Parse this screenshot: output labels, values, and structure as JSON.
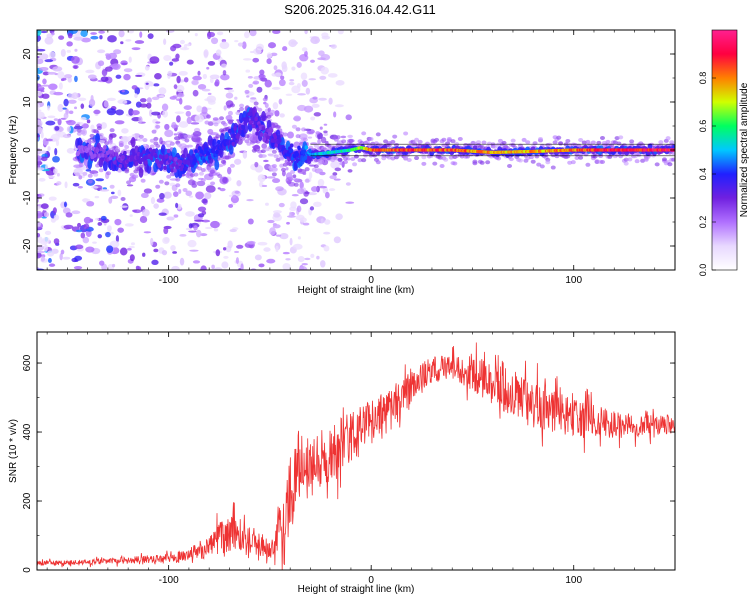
{
  "title": "S206.2025.316.04.42.G11",
  "chart_data": [
    {
      "type": "heatmap",
      "xlabel": "Height of straight line (km)",
      "ylabel": "Frequency (Hz)",
      "xlim": [
        -165,
        150
      ],
      "ylim": [
        -25,
        25
      ],
      "xticks": [
        -100,
        0,
        100
      ],
      "yticks": [
        -20,
        -10,
        0,
        10,
        20
      ],
      "colorbar": {
        "label": "Normalized spectral amplitude",
        "range": [
          0,
          1
        ],
        "ticks": [
          "0.0",
          "0.2",
          "0.4",
          "0.6",
          "0.8"
        ],
        "colors": [
          "#ffffff",
          "#e8d8ff",
          "#b070ff",
          "#7020e0",
          "#2020ff",
          "#00c8ff",
          "#00ff60",
          "#d0ff00",
          "#ff8000",
          "#ff0040",
          "#ff2090"
        ]
      },
      "ridge": {
        "comment_free": true,
        "x": [
          -140,
          -125,
          -110,
          -95,
          -85,
          -75,
          -65,
          -60,
          -55,
          -50,
          -45,
          -40,
          -35,
          -30,
          -20,
          -10,
          -5,
          0,
          20,
          40,
          60,
          80,
          100,
          120,
          150
        ],
        "freq": [
          0,
          -2,
          -1.5,
          -3,
          -1.5,
          0,
          4,
          7,
          5,
          3,
          1,
          -1,
          -1,
          -1,
          -0.5,
          0,
          0.5,
          0,
          0,
          0,
          -0.5,
          -0.3,
          0,
          0,
          0
        ],
        "amplitude": [
          0.25,
          0.3,
          0.35,
          0.3,
          0.45,
          0.4,
          0.35,
          0.35,
          0.3,
          0.3,
          0.35,
          0.4,
          0.45,
          0.5,
          0.55,
          0.6,
          0.7,
          0.85,
          0.9,
          0.88,
          0.8,
          0.8,
          0.85,
          0.95,
          0.95
        ]
      }
    },
    {
      "type": "line",
      "xlabel": "Height of straight line (km)",
      "ylabel": "SNR (10 * v/v)",
      "xlim": [
        -165,
        150
      ],
      "ylim": [
        0,
        690
      ],
      "xticks": [
        -100,
        0,
        100
      ],
      "yticks": [
        0,
        200,
        400,
        600
      ],
      "color": "#ee3333",
      "envelope": {
        "x": [
          -165,
          -140,
          -120,
          -100,
          -90,
          -80,
          -70,
          -60,
          -50,
          -45,
          -40,
          -35,
          -30,
          -20,
          -10,
          0,
          10,
          20,
          30,
          40,
          50,
          60,
          70,
          80,
          90,
          100,
          110,
          120,
          130,
          140,
          150
        ],
        "mean": [
          20,
          22,
          28,
          35,
          45,
          70,
          110,
          90,
          60,
          120,
          220,
          320,
          300,
          330,
          390,
          420,
          470,
          530,
          580,
          590,
          570,
          540,
          510,
          480,
          460,
          440,
          430,
          420,
          420,
          420,
          420
        ],
        "spread": [
          10,
          12,
          14,
          18,
          25,
          50,
          80,
          60,
          40,
          100,
          170,
          150,
          140,
          120,
          110,
          100,
          90,
          70,
          60,
          50,
          70,
          90,
          100,
          100,
          90,
          80,
          70,
          60,
          50,
          45,
          40
        ]
      }
    }
  ]
}
